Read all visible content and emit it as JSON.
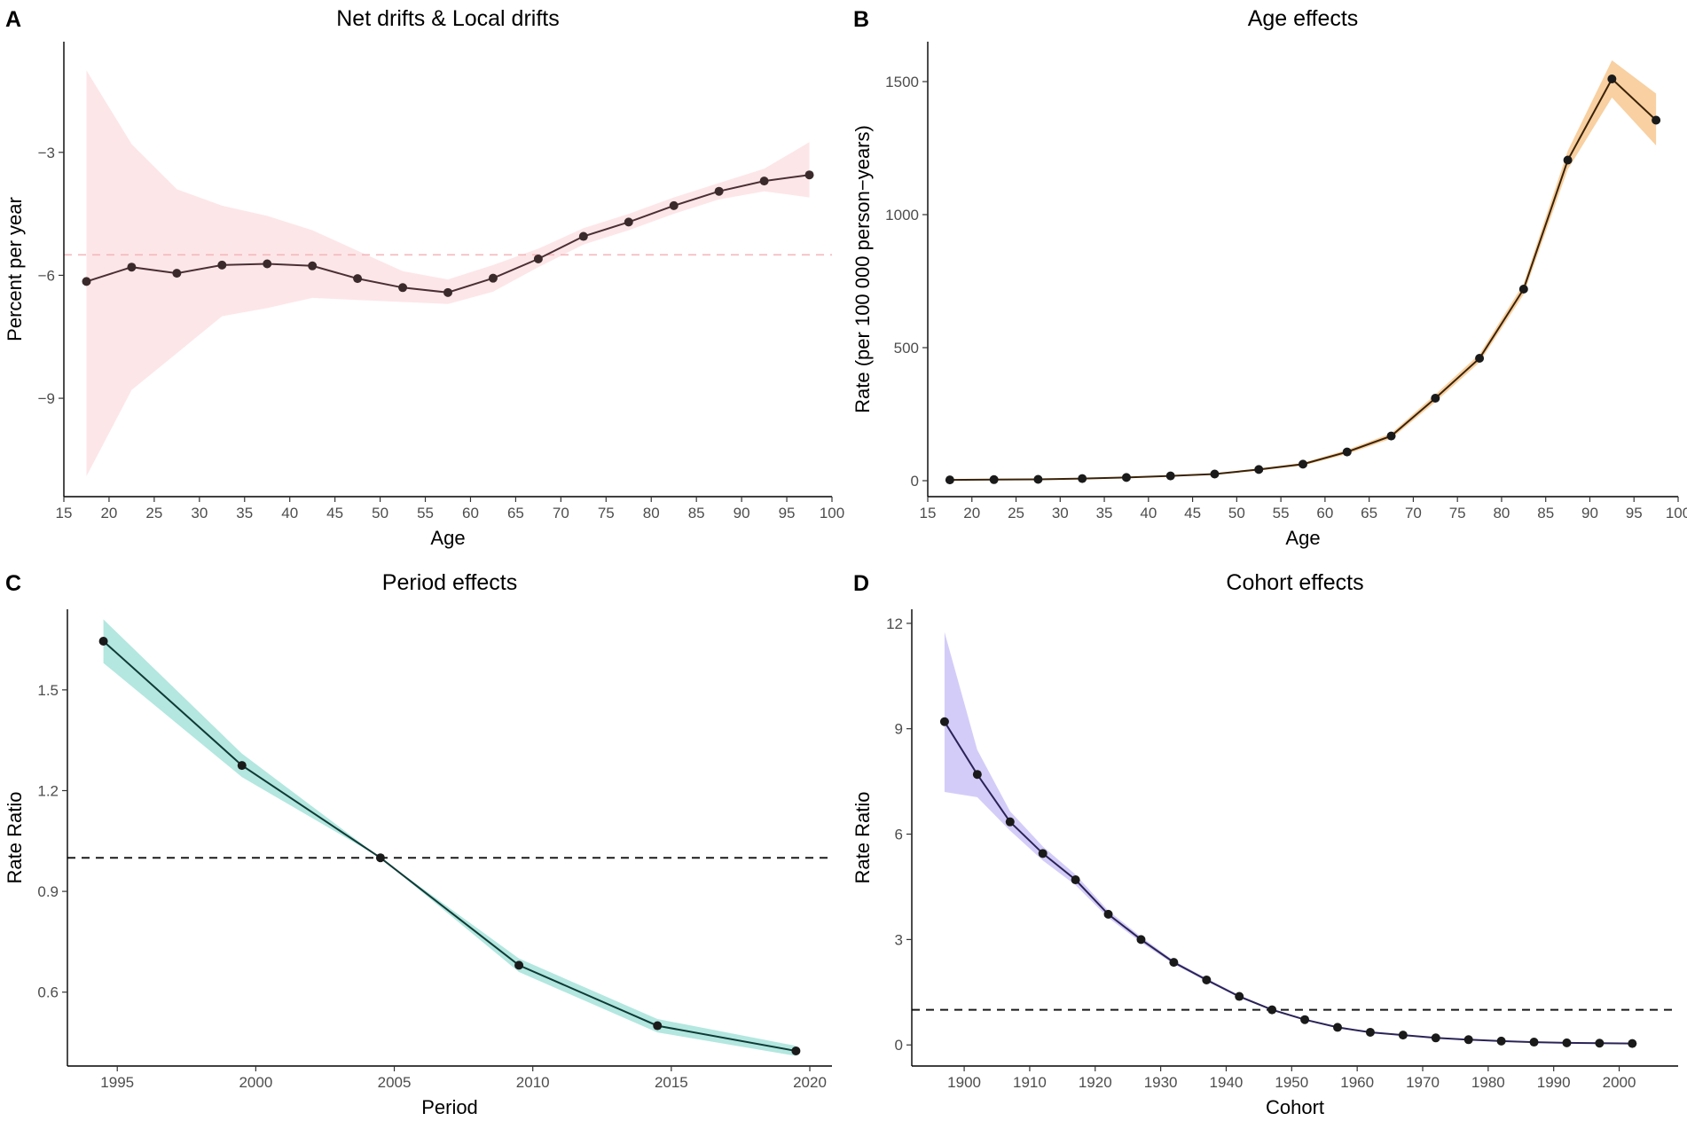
{
  "chart_data": [
    {
      "panel": "A",
      "type": "line",
      "title": "Net drifts & Local drifts",
      "xlabel": "Age",
      "ylabel": "Percent per year",
      "xlim": [
        15,
        100
      ],
      "ylim": [
        -11.4,
        -0.3
      ],
      "xticks": [
        15,
        20,
        25,
        30,
        35,
        40,
        45,
        50,
        55,
        60,
        65,
        70,
        75,
        80,
        85,
        90,
        95,
        100
      ],
      "yticks": [
        -9,
        -6,
        -3
      ],
      "x": [
        17.5,
        22.5,
        27.5,
        32.5,
        37.5,
        42.5,
        47.5,
        52.5,
        57.5,
        62.5,
        67.5,
        72.5,
        77.5,
        82.5,
        87.5,
        92.5,
        97.5
      ],
      "y": [
        -6.15,
        -5.8,
        -5.95,
        -5.75,
        -5.72,
        -5.77,
        -6.08,
        -6.3,
        -6.42,
        -6.07,
        -5.6,
        -5.05,
        -4.7,
        -4.3,
        -3.95,
        -3.7,
        -3.55
      ],
      "lower": [
        -10.9,
        -8.8,
        -7.9,
        -7.0,
        -6.8,
        -6.55,
        -6.6,
        -6.65,
        -6.7,
        -6.4,
        -5.8,
        -5.25,
        -4.9,
        -4.5,
        -4.15,
        -3.95,
        -4.1
      ],
      "upper": [
        -1.0,
        -2.8,
        -3.9,
        -4.3,
        -4.55,
        -4.9,
        -5.4,
        -5.9,
        -6.1,
        -5.75,
        -5.35,
        -4.85,
        -4.5,
        -4.1,
        -3.75,
        -3.4,
        -2.75
      ],
      "ref_line": -5.5,
      "ref_color": "#f4b8bd",
      "ref_width": 1.6,
      "ref_dash": "9 7",
      "band_color": "#fde3e5",
      "band_opacity": 0.9,
      "line_color": "#4a3034",
      "point_color": "#3b2a2c"
    },
    {
      "panel": "B",
      "type": "line",
      "title": "Age effects",
      "xlabel": "Age",
      "ylabel": "Rate (per 100 000 person−years)",
      "xlim": [
        15,
        100
      ],
      "ylim": [
        -60,
        1650
      ],
      "xticks": [
        15,
        20,
        25,
        30,
        35,
        40,
        45,
        50,
        55,
        60,
        65,
        70,
        75,
        80,
        85,
        90,
        95,
        100
      ],
      "yticks": [
        0,
        500,
        1000,
        1500
      ],
      "x": [
        17.5,
        22.5,
        27.5,
        32.5,
        37.5,
        42.5,
        47.5,
        52.5,
        57.5,
        62.5,
        67.5,
        72.5,
        77.5,
        82.5,
        87.5,
        92.5,
        97.5
      ],
      "y": [
        3,
        4,
        5,
        8,
        12,
        18,
        25,
        42,
        62,
        108,
        168,
        310,
        460,
        720,
        1205,
        1510,
        1355
      ],
      "lower": [
        2,
        3,
        4,
        7,
        10,
        16,
        22,
        38,
        57,
        100,
        158,
        296,
        445,
        700,
        1170,
        1440,
        1260
      ],
      "upper": [
        4,
        5,
        6,
        9,
        14,
        20,
        28,
        46,
        67,
        116,
        178,
        324,
        476,
        740,
        1240,
        1580,
        1455
      ],
      "band_color": "#f7c890",
      "band_opacity": 0.85,
      "line_color": "#3a2207",
      "point_color": "#1a1a1a"
    },
    {
      "panel": "C",
      "type": "line",
      "title": "Period effects",
      "xlabel": "Period",
      "ylabel": "Rate Ratio",
      "xlim": [
        1993.2,
        2020.8
      ],
      "ylim": [
        0.38,
        1.74
      ],
      "xticks": [
        1995,
        2000,
        2005,
        2010,
        2015,
        2020
      ],
      "yticks": [
        0.6,
        0.9,
        1.2,
        1.5
      ],
      "x": [
        1994.5,
        1999.5,
        2004.5,
        2009.5,
        2014.5,
        2019.5
      ],
      "y": [
        1.645,
        1.275,
        1.0,
        0.68,
        0.5,
        0.425
      ],
      "lower": [
        1.58,
        1.24,
        1.0,
        0.66,
        0.48,
        0.41
      ],
      "upper": [
        1.71,
        1.31,
        1.0,
        0.7,
        0.52,
        0.44
      ],
      "ref_line": 1.0,
      "ref_color": "#1a1a1a",
      "ref_width": 2,
      "ref_dash": "9 7",
      "band_color": "#a6e3da",
      "band_opacity": 0.85,
      "line_color": "#0f3a36",
      "point_color": "#1a1a1a"
    },
    {
      "panel": "D",
      "type": "line",
      "title": "Cohort effects",
      "xlabel": "Cohort",
      "ylabel": "Rate Ratio",
      "xlim": [
        1892,
        2009
      ],
      "ylim": [
        -0.6,
        12.4
      ],
      "xticks": [
        1900,
        1910,
        1920,
        1930,
        1940,
        1950,
        1960,
        1970,
        1980,
        1990,
        2000
      ],
      "yticks": [
        0,
        3,
        6,
        9,
        12
      ],
      "x": [
        1897,
        1902,
        1907,
        1912,
        1917,
        1922,
        1927,
        1932,
        1937,
        1942,
        1947,
        1952,
        1957,
        1962,
        1967,
        1972,
        1977,
        1982,
        1987,
        1992,
        1997,
        2002
      ],
      "y": [
        9.2,
        7.7,
        6.35,
        5.45,
        4.7,
        3.72,
        3.0,
        2.35,
        1.85,
        1.38,
        1.0,
        0.72,
        0.5,
        0.36,
        0.28,
        0.2,
        0.15,
        0.11,
        0.08,
        0.06,
        0.05,
        0.04
      ],
      "lower": [
        7.2,
        7.05,
        6.1,
        5.25,
        4.55,
        3.62,
        2.92,
        2.3,
        1.81,
        1.35,
        0.98,
        0.7,
        0.49,
        0.35,
        0.27,
        0.19,
        0.14,
        0.1,
        0.07,
        0.05,
        0.04,
        0.03
      ],
      "upper": [
        11.75,
        8.4,
        6.65,
        5.65,
        4.85,
        3.82,
        3.08,
        2.4,
        1.9,
        1.42,
        1.02,
        0.74,
        0.52,
        0.38,
        0.3,
        0.22,
        0.17,
        0.13,
        0.1,
        0.08,
        0.07,
        0.06
      ],
      "ref_line": 1.0,
      "ref_color": "#1a1a1a",
      "ref_width": 2,
      "ref_dash": "9 7",
      "band_color": "#cfc6f7",
      "band_opacity": 0.9,
      "line_color": "#2a2356",
      "point_color": "#1a1a1a"
    }
  ]
}
